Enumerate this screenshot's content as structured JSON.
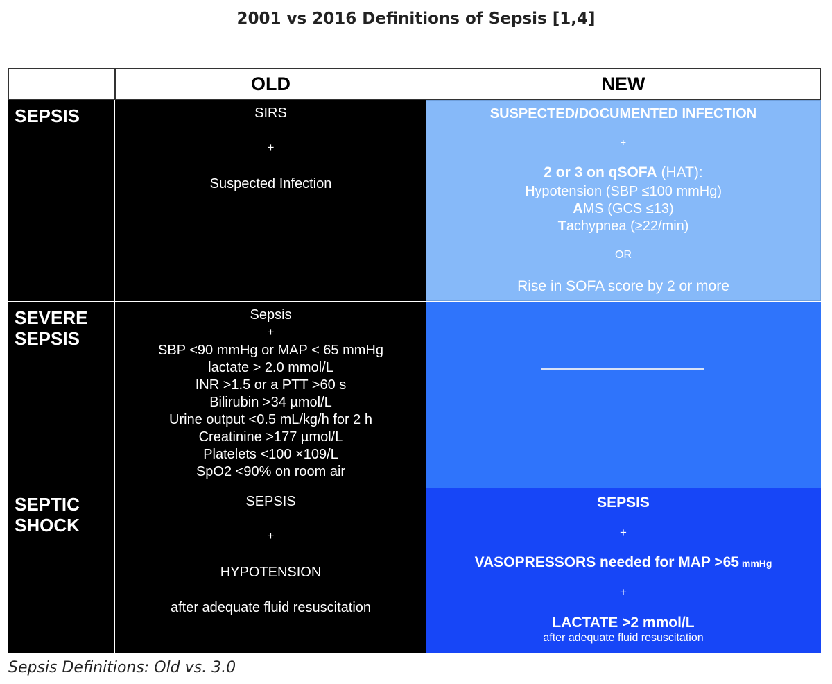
{
  "title": "2001 vs 2016 Definitions of Sepsis [1,4]",
  "caption": "Sepsis Definitions: Old vs. 3.0",
  "headers": {
    "blank": "",
    "old": "OLD",
    "new": "NEW"
  },
  "colors": {
    "label_bg": "#000000",
    "old_bg": "#000000",
    "new_row1_bg": "#86b9f9",
    "new_row2_bg": "#2f74fb",
    "new_row3_bg": "#1746f7"
  },
  "rows": [
    {
      "label_line1": "SEPSIS",
      "label_line2": "",
      "old": {
        "l1": "SIRS",
        "l2": "+",
        "l3": "Suspected Infection"
      },
      "new": {
        "l1": "SUSPECTED/DOCUMENTED INFECTION",
        "l2": "+",
        "l3_bold": "2 or 3 on qSOFA",
        "l3_rest": " (HAT):",
        "l4_bold": "H",
        "l4_rest": "ypotension (SBP ≤100 mmHg)",
        "l5_bold": "A",
        "l5_rest": "MS (GCS ≤13)",
        "l6_bold": "T",
        "l6_rest": "achypnea (≥22/min)",
        "l7": "OR",
        "l8": "Rise in SOFA score by 2 or more"
      }
    },
    {
      "label_line1": "SEVERE",
      "label_line2": "SEPSIS",
      "old": {
        "l1": "Sepsis",
        "l2": "+",
        "l3": "SBP <90 mmHg or MAP < 65 mmHg",
        "l4": "lactate > 2.0 mmol/L",
        "l5": "INR >1.5 or a PTT >60 s",
        "l6": "Bilirubin >34 µmol/L",
        "l7": "Urine output <0.5 mL/kg/h for 2 h",
        "l8": "Creatinine >177 µmol/L",
        "l9": "Platelets <100 ×109/L",
        "l10": "SpO2 <90% on room air"
      },
      "new": {}
    },
    {
      "label_line1": "SEPTIC",
      "label_line2": "SHOCK",
      "old": {
        "l1": "SEPSIS",
        "l2": "+",
        "l3": "HYPOTENSION",
        "l4": "after adequate fluid resuscitation"
      },
      "new": {
        "l1": "SEPSIS",
        "l2": "+",
        "l3_main": "VASOPRESSORS needed for MAP >65",
        "l3_unit": " mmHg",
        "l4": "+",
        "l5": "LACTATE >2 mmol/L",
        "l6": "after adequate fluid resuscitation"
      }
    }
  ]
}
